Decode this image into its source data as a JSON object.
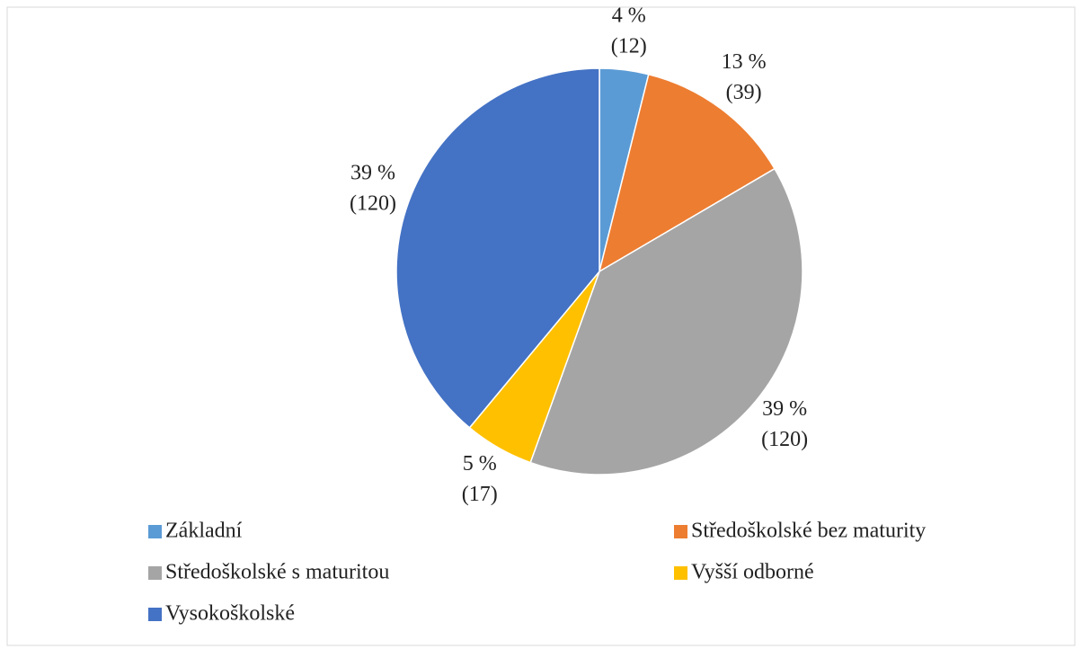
{
  "chart_data": {
    "type": "pie",
    "categories": [
      "Základní",
      "Středoškolské bez maturity",
      "Středoškolské s maturitou",
      "Vyšší odborné",
      "Vysokoškolské"
    ],
    "values": [
      12,
      39,
      120,
      17,
      120
    ],
    "value_labels": [
      "(12)",
      "(39)",
      "(120)",
      "(17)",
      "(120)"
    ],
    "percent_labels": [
      "4 %",
      "13 %",
      "39 %",
      "5 %",
      "39 %"
    ],
    "colors": [
      "#5b9bd5",
      "#ed7d31",
      "#a5a5a5",
      "#ffc000",
      "#4472c4"
    ],
    "legend": "bottom"
  }
}
